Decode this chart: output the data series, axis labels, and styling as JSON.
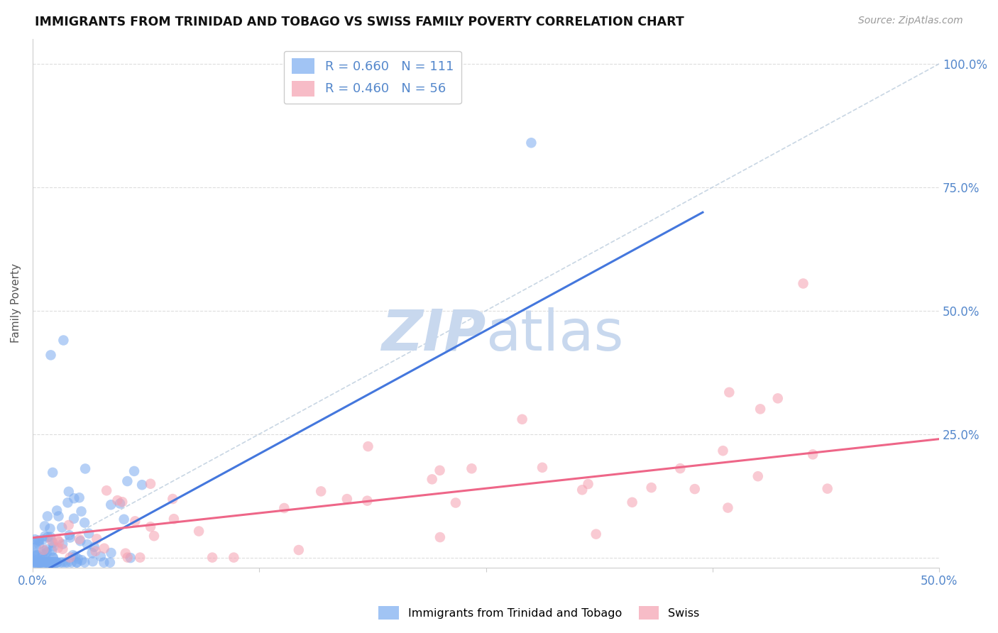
{
  "title": "IMMIGRANTS FROM TRINIDAD AND TOBAGO VS SWISS FAMILY POVERTY CORRELATION CHART",
  "source": "Source: ZipAtlas.com",
  "ylabel": "Family Poverty",
  "xlim": [
    0.0,
    0.5
  ],
  "ylim": [
    -0.02,
    1.05
  ],
  "blue_R": 0.66,
  "blue_N": 111,
  "pink_R": 0.46,
  "pink_N": 56,
  "legend_label_blue": "Immigrants from Trinidad and Tobago",
  "legend_label_pink": "Swiss",
  "blue_color": "#7AABF0",
  "pink_color": "#F5A0B0",
  "line_blue_color": "#4477DD",
  "line_pink_color": "#EE6688",
  "dash_color": "#BBCCDD",
  "watermark_color": "#C8D8EE",
  "ytick_vals": [
    0.0,
    0.25,
    0.5,
    0.75,
    1.0
  ],
  "ytick_labels": [
    "",
    "25.0%",
    "50.0%",
    "75.0%",
    "100.0%"
  ],
  "blue_line_x0": 0.0,
  "blue_line_y0": -0.04,
  "blue_line_x1": 0.36,
  "blue_line_y1": 0.68,
  "pink_line_x0": 0.0,
  "pink_line_y0": 0.04,
  "pink_line_x1": 0.5,
  "pink_line_y1": 0.24,
  "dash_line_x0": 0.0,
  "dash_line_y0": 0.0,
  "dash_line_x1": 0.5,
  "dash_line_y1": 1.0
}
